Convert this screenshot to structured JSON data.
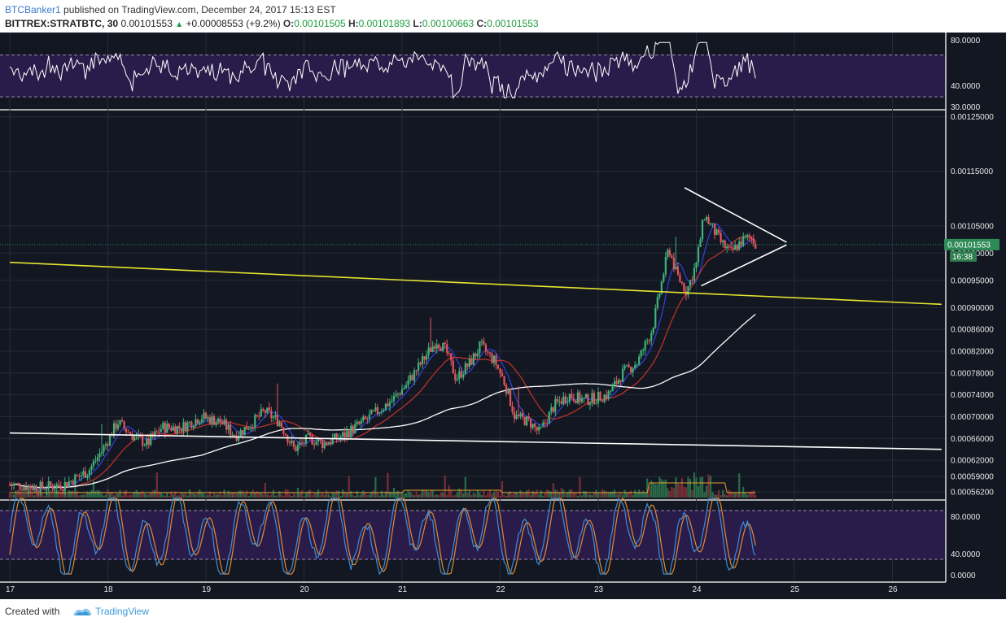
{
  "header": {
    "username": "BTCBanker1",
    "published": "published on TradingView.com, December 24, 2017 15:13 EST",
    "symbol": "BITTREX:STRATBTC, 30",
    "last": "0.00101553",
    "change": "+0.00008553 (+9.2%)",
    "o_label": "O:",
    "o": "0.00101505",
    "h_label": "H:",
    "h": "0.00101893",
    "l_label": "L:",
    "l": "0.00100663",
    "c_label": "C:",
    "c": "0.00101553"
  },
  "footer": {
    "created_with": "Created with",
    "brand": "TradingView"
  },
  "colors": {
    "background": "#131722",
    "band_fill": "#2a1c4a",
    "up": "#3fb37b",
    "down": "#e5555f",
    "yellow_line": "#e6e62e",
    "white_line": "#ffffff",
    "ma_blue": "#2b3fd6",
    "ma_red": "#b8302a",
    "stoch_k": "#3a8fd9",
    "stoch_d": "#e58a2e",
    "current_price": "#2e8b57"
  },
  "chart_data": {
    "type": "candlestick",
    "title": "BITTREX:STRATBTC, 30",
    "x_ticks": [
      "17",
      "18",
      "19",
      "20",
      "21",
      "22",
      "23",
      "24",
      "25",
      "26"
    ],
    "price_ticks": [
      "0.00125000",
      "0.00115000",
      "0.00105000",
      "0.00100000",
      "0.00095000",
      "0.00090000",
      "0.00086000",
      "0.00082000",
      "0.00078000",
      "0.00074000",
      "0.00070000",
      "0.00066000",
      "0.00062000",
      "0.00059000",
      "0.00056200"
    ],
    "price_range": [
      0.00055,
      0.00126
    ],
    "current_price": "0.00101553",
    "time_to_close": "16:38",
    "rsi_ticks": [
      "80.0000",
      "40.0000",
      "30.0000"
    ],
    "rsi_band": [
      30,
      70
    ],
    "stoch_ticks": [
      "80.0000",
      "40.0000",
      "0.0000"
    ],
    "stoch_band": [
      20,
      80
    ],
    "trendlines": [
      {
        "name": "yellow resistance",
        "color": "yellow",
        "from": [
          17.0,
          0.000983
        ],
        "to": [
          26.5,
          0.000906
        ]
      },
      {
        "name": "white support",
        "color": "white",
        "from": [
          17.0,
          0.00067
        ],
        "to": [
          26.5,
          0.00064
        ]
      },
      {
        "name": "triangle upper",
        "color": "white",
        "from": [
          23.88,
          0.00112
        ],
        "to": [
          24.92,
          0.00102
        ]
      },
      {
        "name": "triangle lower",
        "color": "white",
        "from": [
          24.05,
          0.00094
        ],
        "to": [
          24.92,
          0.001015
        ]
      }
    ],
    "price_path": [
      [
        17.0,
        0.000575
      ],
      [
        17.3,
        0.00057
      ],
      [
        17.55,
        0.000575
      ],
      [
        17.8,
        0.0006
      ],
      [
        17.95,
        0.00064
      ],
      [
        18.1,
        0.00069
      ],
      [
        18.25,
        0.000665
      ],
      [
        18.4,
        0.00065
      ],
      [
        18.55,
        0.00068
      ],
      [
        18.75,
        0.00068
      ],
      [
        18.95,
        0.0007
      ],
      [
        19.15,
        0.00069
      ],
      [
        19.3,
        0.000665
      ],
      [
        19.45,
        0.000685
      ],
      [
        19.6,
        0.00071
      ],
      [
        19.75,
        0.00069
      ],
      [
        19.9,
        0.00064
      ],
      [
        20.05,
        0.00066
      ],
      [
        20.2,
        0.00065
      ],
      [
        20.4,
        0.000665
      ],
      [
        20.6,
        0.00069
      ],
      [
        20.75,
        0.00071
      ],
      [
        20.9,
        0.00073
      ],
      [
        21.05,
        0.00076
      ],
      [
        21.2,
        0.0008
      ],
      [
        21.35,
        0.00084
      ],
      [
        21.45,
        0.00082
      ],
      [
        21.55,
        0.00077
      ],
      [
        21.7,
        0.0008
      ],
      [
        21.8,
        0.00083
      ],
      [
        21.95,
        0.0008
      ],
      [
        22.05,
        0.00076
      ],
      [
        22.15,
        0.0007
      ],
      [
        22.3,
        0.00069
      ],
      [
        22.4,
        0.00067
      ],
      [
        22.55,
        0.00072
      ],
      [
        22.7,
        0.00074
      ],
      [
        22.85,
        0.00073
      ],
      [
        23.0,
        0.000735
      ],
      [
        23.1,
        0.00074
      ],
      [
        23.25,
        0.00078
      ],
      [
        23.4,
        0.0008
      ],
      [
        23.55,
        0.00086
      ],
      [
        23.65,
        0.00095
      ],
      [
        23.72,
        0.00101
      ],
      [
        23.8,
        0.00096
      ],
      [
        23.9,
        0.00093
      ],
      [
        24.0,
        0.00098
      ],
      [
        24.08,
        0.00107
      ],
      [
        24.15,
        0.00105
      ],
      [
        24.25,
        0.00102
      ],
      [
        24.35,
        0.001
      ],
      [
        24.45,
        0.00102
      ],
      [
        24.55,
        0.00103
      ],
      [
        24.62,
        0.001015
      ]
    ]
  }
}
